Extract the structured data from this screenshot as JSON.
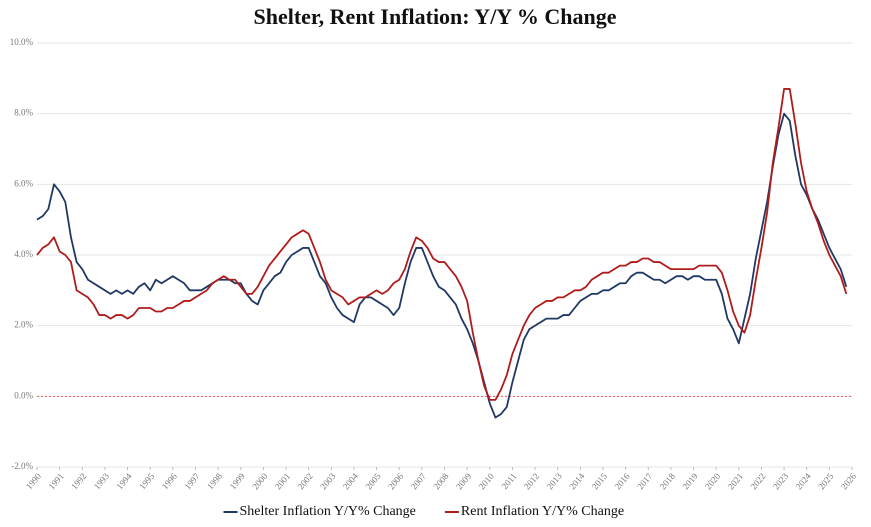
{
  "chart_data": {
    "type": "line",
    "title": "Shelter, Rent Inflation: Y/Y % Change",
    "x": [
      1990,
      1990.25,
      1990.5,
      1990.75,
      1991,
      1991.25,
      1991.5,
      1991.75,
      1992,
      1992.25,
      1992.5,
      1992.75,
      1993,
      1993.25,
      1993.5,
      1993.75,
      1994,
      1994.25,
      1994.5,
      1994.75,
      1995,
      1995.25,
      1995.5,
      1995.75,
      1996,
      1996.25,
      1996.5,
      1996.75,
      1997,
      1997.25,
      1997.5,
      1997.75,
      1998,
      1998.25,
      1998.5,
      1998.75,
      1999,
      1999.25,
      1999.5,
      1999.75,
      2000,
      2000.25,
      2000.5,
      2000.75,
      2001,
      2001.25,
      2001.5,
      2001.75,
      2002,
      2002.25,
      2002.5,
      2002.75,
      2003,
      2003.25,
      2003.5,
      2003.75,
      2004,
      2004.25,
      2004.5,
      2004.75,
      2005,
      2005.25,
      2005.5,
      2005.75,
      2006,
      2006.25,
      2006.5,
      2006.75,
      2007,
      2007.25,
      2007.5,
      2007.75,
      2008,
      2008.25,
      2008.5,
      2008.75,
      2009,
      2009.25,
      2009.5,
      2009.75,
      2010,
      2010.25,
      2010.5,
      2010.75,
      2011,
      2011.25,
      2011.5,
      2011.75,
      2012,
      2012.25,
      2012.5,
      2012.75,
      2013,
      2013.25,
      2013.5,
      2013.75,
      2014,
      2014.25,
      2014.5,
      2014.75,
      2015,
      2015.25,
      2015.5,
      2015.75,
      2016,
      2016.25,
      2016.5,
      2016.75,
      2017,
      2017.25,
      2017.5,
      2017.75,
      2018,
      2018.25,
      2018.5,
      2018.75,
      2019,
      2019.25,
      2019.5,
      2019.75,
      2020,
      2020.25,
      2020.5,
      2020.75,
      2021,
      2021.25,
      2021.5,
      2021.75,
      2022,
      2022.25,
      2022.5,
      2022.75,
      2023,
      2023.25,
      2023.5,
      2023.75,
      2024,
      2024.25,
      2024.5,
      2024.75,
      2025,
      2025.25,
      2025.5,
      2025.75
    ],
    "series": [
      {
        "name": "Shelter Inflation Y/Y% Change",
        "color": "#1f3864",
        "values": [
          5.0,
          5.1,
          5.3,
          6.0,
          5.8,
          5.5,
          4.5,
          3.8,
          3.6,
          3.3,
          3.2,
          3.1,
          3.0,
          2.9,
          3.0,
          2.9,
          3.0,
          2.9,
          3.1,
          3.2,
          3.0,
          3.3,
          3.2,
          3.3,
          3.4,
          3.3,
          3.2,
          3.0,
          3.0,
          3.0,
          3.1,
          3.2,
          3.3,
          3.3,
          3.3,
          3.2,
          3.2,
          2.9,
          2.7,
          2.6,
          3.0,
          3.2,
          3.4,
          3.5,
          3.8,
          4.0,
          4.1,
          4.2,
          4.2,
          3.8,
          3.4,
          3.2,
          2.8,
          2.5,
          2.3,
          2.2,
          2.1,
          2.6,
          2.8,
          2.8,
          2.7,
          2.6,
          2.5,
          2.3,
          2.5,
          3.2,
          3.8,
          4.2,
          4.2,
          3.8,
          3.4,
          3.1,
          3.0,
          2.8,
          2.6,
          2.2,
          1.9,
          1.5,
          1.0,
          0.4,
          -0.2,
          -0.6,
          -0.5,
          -0.3,
          0.4,
          1.0,
          1.6,
          1.9,
          2.0,
          2.1,
          2.2,
          2.2,
          2.2,
          2.3,
          2.3,
          2.5,
          2.7,
          2.8,
          2.9,
          2.9,
          3.0,
          3.0,
          3.1,
          3.2,
          3.2,
          3.4,
          3.5,
          3.5,
          3.4,
          3.3,
          3.3,
          3.2,
          3.3,
          3.4,
          3.4,
          3.3,
          3.4,
          3.4,
          3.3,
          3.3,
          3.3,
          2.9,
          2.2,
          1.9,
          1.5,
          2.2,
          2.9,
          3.9,
          4.7,
          5.5,
          6.5,
          7.4,
          8.0,
          7.8,
          6.8,
          6.0,
          5.7,
          5.3,
          5.0,
          4.6,
          4.2,
          3.9,
          3.6,
          3.1
        ]
      },
      {
        "name": "Rent Inflation Y/Y% Change",
        "color": "#b01c1c",
        "values": [
          4.0,
          4.2,
          4.3,
          4.5,
          4.1,
          4.0,
          3.8,
          3.0,
          2.9,
          2.8,
          2.6,
          2.3,
          2.3,
          2.2,
          2.3,
          2.3,
          2.2,
          2.3,
          2.5,
          2.5,
          2.5,
          2.4,
          2.4,
          2.5,
          2.5,
          2.6,
          2.7,
          2.7,
          2.8,
          2.9,
          3.0,
          3.2,
          3.3,
          3.4,
          3.3,
          3.3,
          3.1,
          2.9,
          2.9,
          3.1,
          3.4,
          3.7,
          3.9,
          4.1,
          4.3,
          4.5,
          4.6,
          4.7,
          4.6,
          4.2,
          3.8,
          3.3,
          3.0,
          2.9,
          2.8,
          2.6,
          2.7,
          2.8,
          2.8,
          2.9,
          3.0,
          2.9,
          3.0,
          3.2,
          3.3,
          3.6,
          4.1,
          4.5,
          4.4,
          4.2,
          3.9,
          3.8,
          3.8,
          3.6,
          3.4,
          3.1,
          2.7,
          1.8,
          1.0,
          0.3,
          -0.1,
          -0.1,
          0.2,
          0.6,
          1.2,
          1.6,
          2.0,
          2.3,
          2.5,
          2.6,
          2.7,
          2.7,
          2.8,
          2.8,
          2.9,
          3.0,
          3.0,
          3.1,
          3.3,
          3.4,
          3.5,
          3.5,
          3.6,
          3.7,
          3.7,
          3.8,
          3.8,
          3.9,
          3.9,
          3.8,
          3.8,
          3.7,
          3.6,
          3.6,
          3.6,
          3.6,
          3.6,
          3.7,
          3.7,
          3.7,
          3.7,
          3.5,
          3.0,
          2.4,
          2.0,
          1.8,
          2.3,
          3.3,
          4.2,
          5.2,
          6.6,
          7.6,
          8.7,
          8.7,
          7.7,
          6.6,
          5.8,
          5.3,
          4.9,
          4.4,
          4.0,
          3.7,
          3.4,
          2.9
        ]
      }
    ],
    "xlim": [
      1990,
      2026
    ],
    "xticks": [
      1990,
      1991,
      1992,
      1993,
      1994,
      1995,
      1996,
      1997,
      1998,
      1999,
      2000,
      2001,
      2002,
      2003,
      2004,
      2005,
      2006,
      2007,
      2008,
      2009,
      2010,
      2011,
      2012,
      2013,
      2014,
      2015,
      2016,
      2017,
      2018,
      2019,
      2020,
      2021,
      2022,
      2023,
      2024,
      2025,
      2026
    ],
    "ylim": [
      -2,
      10
    ],
    "yticks": [
      {
        "value": -2,
        "label": "-2.0%"
      },
      {
        "value": 0,
        "label": "0.0%"
      },
      {
        "value": 2,
        "label": "2.0%"
      },
      {
        "value": 4,
        "label": "4.0%"
      },
      {
        "value": 6,
        "label": "6.0%"
      },
      {
        "value": 8,
        "label": "8.0%"
      },
      {
        "value": 10,
        "label": "10.0%"
      }
    ],
    "grid": true,
    "reference_line": {
      "value": 0,
      "color": "#e06060"
    },
    "legend": "bottom"
  }
}
